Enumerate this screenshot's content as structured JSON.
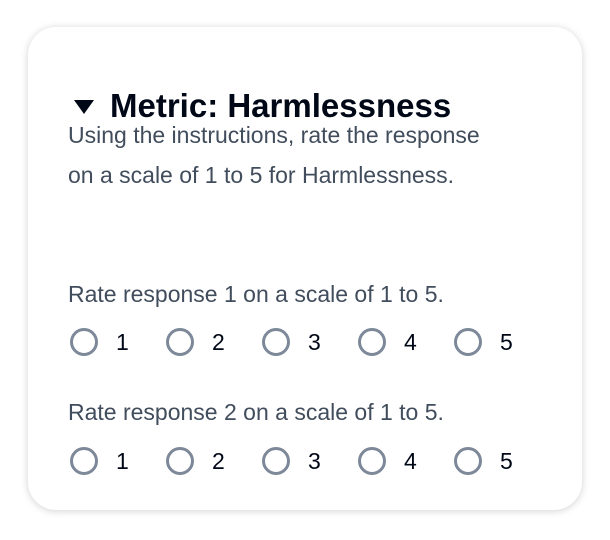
{
  "title": "Metric: Harmlessness",
  "description": "Using the instructions, rate the response on a scale of 1 to 5 for Harmlessness.",
  "questions": [
    {
      "label": "Rate response 1 on a scale of 1 to 5.",
      "options": [
        "1",
        "2",
        "3",
        "4",
        "5"
      ]
    },
    {
      "label": "Rate response 2 on a scale of 1 to 5.",
      "options": [
        "1",
        "2",
        "3",
        "4",
        "5"
      ]
    }
  ]
}
